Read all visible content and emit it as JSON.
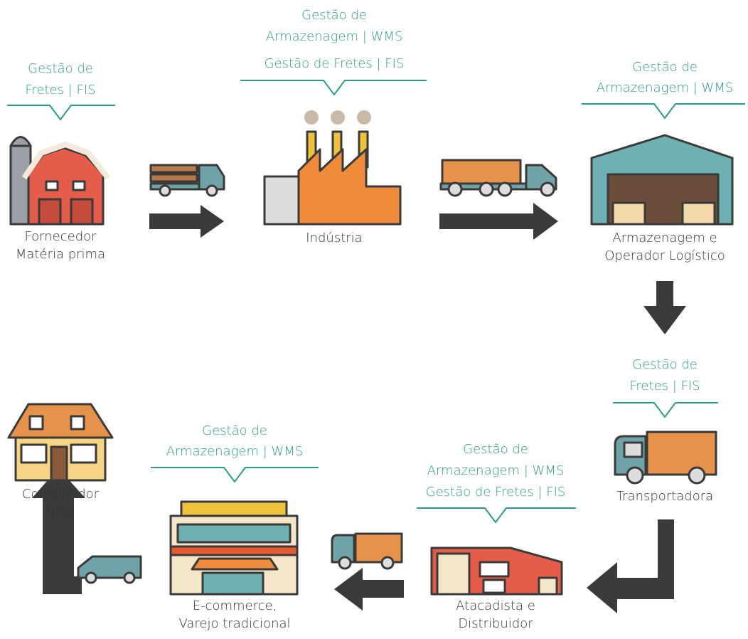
{
  "nodes": [
    {
      "label": [
        "Fornecedor",
        "Matéria prima"
      ],
      "systems": [
        "Gestão de",
        "Fretes | FIS"
      ]
    },
    {
      "label": [
        "Indústria"
      ],
      "systems": [
        "Gestão de",
        "Armazenagem | WMS",
        "Gestão de Fretes | FIS"
      ]
    },
    {
      "label": [
        "Armazenagem e",
        "Operador Logístico"
      ],
      "systems": [
        "Gestão de",
        "Armazenagem | WMS"
      ]
    },
    {
      "label": [
        "Transportadora"
      ],
      "systems": [
        "Gestão de",
        "Fretes | FIS"
      ]
    },
    {
      "label": [
        "Atacadista e",
        "Distribuidor"
      ],
      "systems": [
        "Gestão de",
        "Armazenagem | WMS",
        "Gestão de Fretes | FIS"
      ]
    },
    {
      "label": [
        "E-commerce,",
        "Varejo tradicional"
      ],
      "systems": [
        "Gestão de",
        "Armazenagem | WMS"
      ]
    },
    {
      "label": [
        "Consumidor",
        "final"
      ],
      "systems": []
    }
  ]
}
